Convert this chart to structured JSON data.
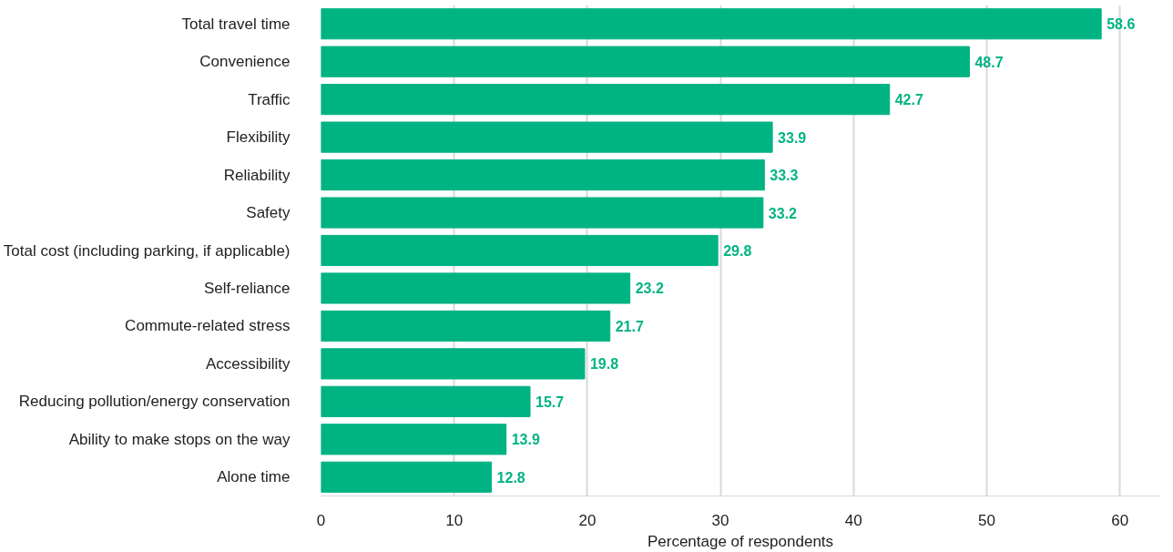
{
  "chart_data": {
    "type": "bar",
    "orientation": "horizontal",
    "xlabel": "Percentage of respondents",
    "categories": [
      "Total travel time",
      "Convenience",
      "Traffic",
      "Flexibility",
      "Reliability",
      "Safety",
      "Total cost (including parking, if applicable)",
      "Self-reliance",
      "Commute-related stress",
      "Accessibility",
      "Reducing pollution/energy conservation",
      "Ability to make stops on the way",
      "Alone time"
    ],
    "values": [
      58.6,
      48.7,
      42.7,
      33.9,
      33.3,
      33.2,
      29.8,
      23.2,
      21.7,
      19.8,
      15.7,
      13.9,
      12.8
    ],
    "color": "#00b383",
    "data_labels": true,
    "grid": "x",
    "xlim": [
      0,
      63
    ],
    "xticks": [
      0,
      10,
      20,
      30,
      40,
      50,
      60
    ]
  }
}
